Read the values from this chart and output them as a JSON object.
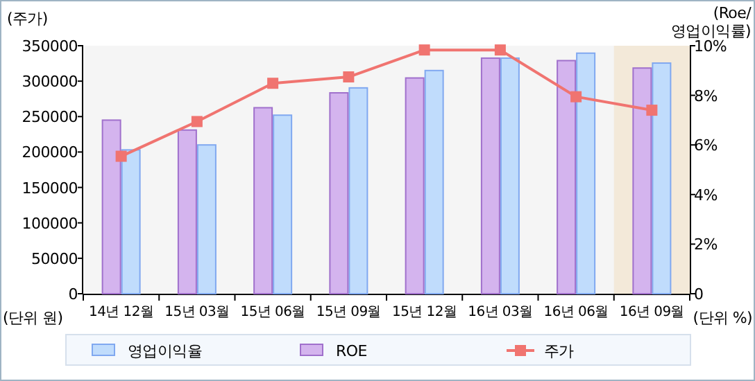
{
  "chart_data": {
    "type": "bar",
    "ylabel": "(주가)",
    "y2label": "(Roe/\n영업이익률)",
    "annotations": [
      "(단위 원)",
      "(단위 %)"
    ],
    "categories": [
      "14년 12월",
      "15년 03월",
      "15년 06월",
      "15년 09월",
      "15년 12월",
      "16년 03월",
      "16년 06월",
      "16년 09월"
    ],
    "series": [
      {
        "name": "영업이익율",
        "axis": "y2",
        "color": "#c0dcfc",
        "values": [
          5.8,
          6.0,
          7.2,
          8.3,
          9.0,
          9.5,
          9.7,
          9.3
        ]
      },
      {
        "name": "ROE",
        "axis": "y2",
        "color": "#d4b4ee",
        "values": [
          7.0,
          6.6,
          7.5,
          8.1,
          8.7,
          9.5,
          9.4,
          9.1
        ]
      },
      {
        "name": "주가",
        "type": "line",
        "color": "#f07470",
        "marker": "square",
        "values": [
          194000,
          243000,
          297000,
          306000,
          344000,
          344000,
          278000,
          259000
        ]
      }
    ],
    "ylim": [
      0,
      350000
    ],
    "yticks": [
      0,
      50000,
      100000,
      150000,
      200000,
      250000,
      300000,
      350000
    ],
    "y2lim": [
      0,
      10
    ],
    "y2ticks": [
      0,
      {
        "value": 2,
        "label": "2%"
      },
      {
        "value": 4,
        "label": "4%"
      },
      {
        "value": 6,
        "label": "6%"
      },
      {
        "value": 8,
        "label": "8%"
      },
      {
        "value": 10,
        "label": "10%"
      }
    ],
    "bands": [
      {
        "axis": "x",
        "from": "16년 09월",
        "to": "16년 09월",
        "color": "#f3e9d9"
      }
    ],
    "legend": "bottom",
    "grid": false
  }
}
